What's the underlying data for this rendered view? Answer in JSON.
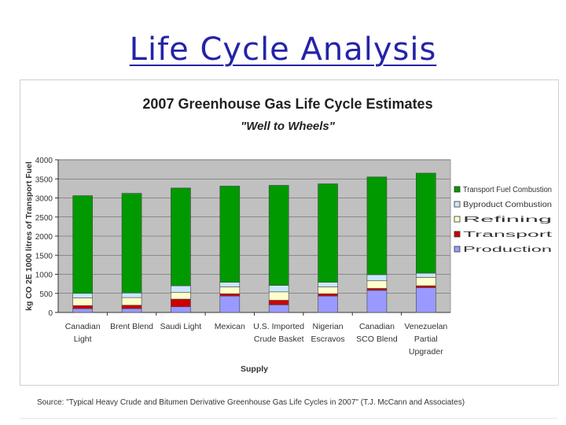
{
  "slide": {
    "title": "Life Cycle Analysis",
    "source": "Source: \"Typical Heavy Crude and Bitumen Derivative Greenhouse Gas Life Cycles in 2007\" (T.J. McCann and Associates)"
  },
  "chart_data": {
    "type": "bar",
    "stacked": true,
    "title": "2007 Greenhouse Gas Life Cycle Estimates",
    "subtitle": "\"Well to Wheels\"",
    "xlabel": "Supply",
    "ylabel": "kg CO 2E 1000 litres of Transport Fuel",
    "ylim": [
      0,
      4000
    ],
    "yticks": [
      0,
      500,
      1000,
      1500,
      2000,
      2500,
      3000,
      3500,
      4000
    ],
    "grid": true,
    "legend_position": "right",
    "categories": [
      [
        "Canadian",
        "Light"
      ],
      [
        "Brent Blend"
      ],
      [
        "Saudi Light"
      ],
      [
        "Mexican"
      ],
      [
        "U.S. Imported",
        "Crude Basket"
      ],
      [
        "Nigerian",
        "Escravos"
      ],
      [
        "Canadian",
        "SCO Blend"
      ],
      [
        "Venezuelan",
        "Partial",
        "Upgrader"
      ]
    ],
    "series": [
      {
        "name": "Production",
        "color": "#9999ff",
        "values": [
          100,
          100,
          150,
          430,
          200,
          430,
          580,
          650
        ]
      },
      {
        "name": "Transport",
        "color": "#cc0000",
        "values": [
          80,
          90,
          200,
          60,
          120,
          60,
          50,
          50
        ]
      },
      {
        "name": "Refining",
        "color": "#ffffcc",
        "values": [
          200,
          200,
          180,
          180,
          220,
          180,
          200,
          220
        ]
      },
      {
        "name": "Byproduct Combustion",
        "color": "#cce6ff",
        "values": [
          120,
          120,
          170,
          120,
          170,
          120,
          160,
          110
        ]
      },
      {
        "name": "Transport Fuel Combustion",
        "color": "#009900",
        "values": [
          2560,
          2610,
          2560,
          2520,
          2620,
          2580,
          2560,
          2620
        ]
      }
    ]
  }
}
